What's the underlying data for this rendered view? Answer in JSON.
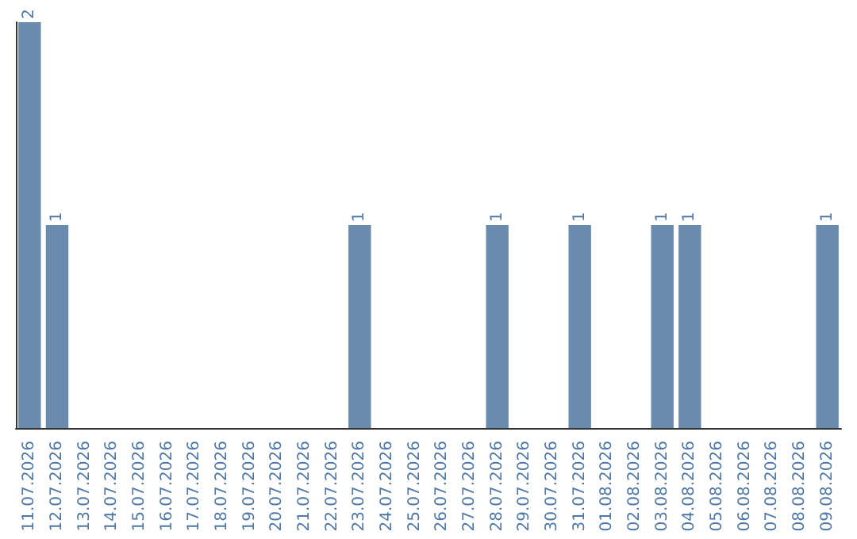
{
  "chart_data": {
    "type": "bar",
    "categories": [
      "11.07.2026",
      "12.07.2026",
      "13.07.2026",
      "14.07.2026",
      "15.07.2026",
      "16.07.2026",
      "17.07.2026",
      "18.07.2026",
      "19.07.2026",
      "20.07.2026",
      "21.07.2026",
      "22.07.2026",
      "23.07.2026",
      "24.07.2026",
      "25.07.2026",
      "26.07.2026",
      "27.07.2026",
      "28.07.2026",
      "29.07.2026",
      "30.07.2026",
      "31.07.2026",
      "01.08.2026",
      "02.08.2026",
      "03.08.2026",
      "04.08.2026",
      "05.08.2026",
      "06.08.2026",
      "07.08.2026",
      "08.08.2026",
      "09.08.2026"
    ],
    "values": [
      2,
      1,
      0,
      0,
      0,
      0,
      0,
      0,
      0,
      0,
      0,
      0,
      1,
      0,
      0,
      0,
      0,
      1,
      0,
      0,
      1,
      0,
      0,
      1,
      1,
      0,
      0,
      0,
      0,
      1
    ],
    "value_labels": [
      "2",
      "1",
      null,
      null,
      null,
      null,
      null,
      null,
      null,
      null,
      null,
      null,
      "1",
      null,
      null,
      null,
      null,
      "1",
      null,
      null,
      "1",
      null,
      null,
      "1",
      "1",
      null,
      null,
      null,
      null,
      "1"
    ],
    "color": "#6a8bab",
    "grid": false,
    "tick_labels": "x"
  }
}
